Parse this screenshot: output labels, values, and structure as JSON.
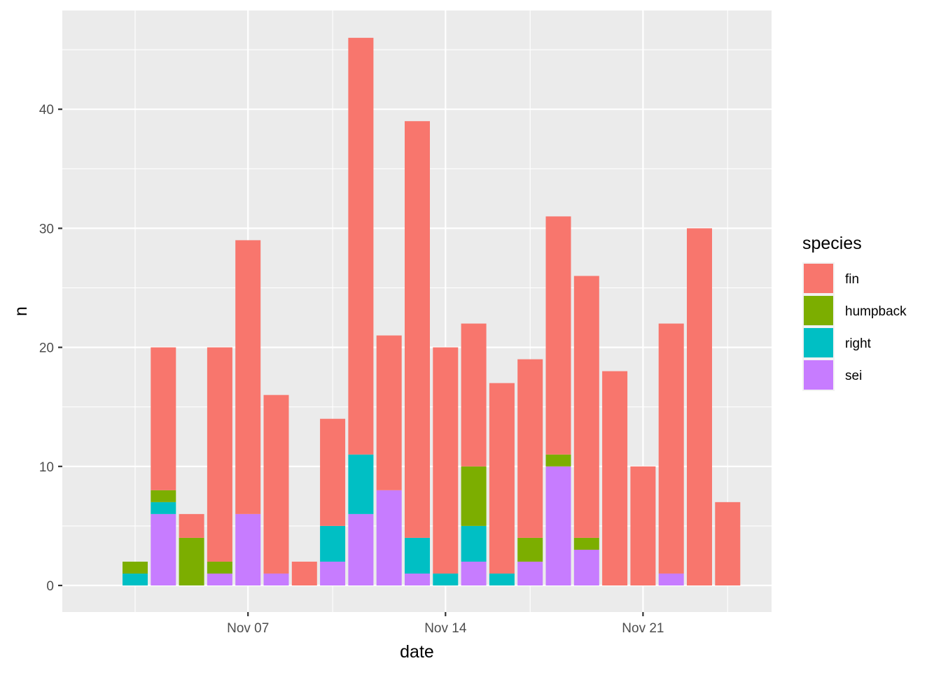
{
  "chart_data": {
    "type": "bar",
    "stacked": true,
    "xlabel": "date",
    "ylabel": "n",
    "ylim": [
      -2,
      49
    ],
    "xlim": [
      "2022-11-00 (approx)",
      "2022-11-27"
    ],
    "x_ticks": [
      "Nov 07",
      "Nov 14",
      "Nov 21"
    ],
    "y_ticks": [
      0,
      10,
      20,
      30,
      40
    ],
    "grid": true,
    "legend": {
      "title": "species",
      "position": "right"
    },
    "colors": {
      "fin": "#F8766D",
      "humpback": "#7CAE00",
      "right": "#00BFC4",
      "sei": "#C77CFF"
    },
    "categories": [
      "Nov 03",
      "Nov 04",
      "Nov 05",
      "Nov 06",
      "Nov 07",
      "Nov 08",
      "Nov 09",
      "Nov 10",
      "Nov 11",
      "Nov 12",
      "Nov 13",
      "Nov 14",
      "Nov 15",
      "Nov 16",
      "Nov 17",
      "Nov 18",
      "Nov 19",
      "Nov 20",
      "Nov 21",
      "Nov 22",
      "Nov 23",
      "Nov 24"
    ],
    "series": [
      {
        "name": "sei",
        "values": [
          0,
          6,
          0,
          1,
          6,
          1,
          0,
          2,
          6,
          8,
          1,
          0,
          2,
          0,
          2,
          10,
          3,
          0,
          0,
          1,
          0,
          0
        ]
      },
      {
        "name": "right",
        "values": [
          1,
          1,
          0,
          0,
          0,
          0,
          0,
          3,
          5,
          0,
          3,
          1,
          3,
          1,
          0,
          0,
          0,
          0,
          0,
          0,
          0,
          0
        ]
      },
      {
        "name": "humpback",
        "values": [
          1,
          1,
          4,
          1,
          0,
          0,
          0,
          0,
          0,
          0,
          0,
          0,
          5,
          0,
          2,
          1,
          1,
          0,
          0,
          0,
          0,
          0
        ]
      },
      {
        "name": "fin",
        "values": [
          0,
          12,
          2,
          18,
          23,
          15,
          2,
          9,
          35,
          13,
          35,
          19,
          12,
          16,
          15,
          20,
          22,
          18,
          10,
          21,
          30,
          7
        ]
      }
    ]
  }
}
